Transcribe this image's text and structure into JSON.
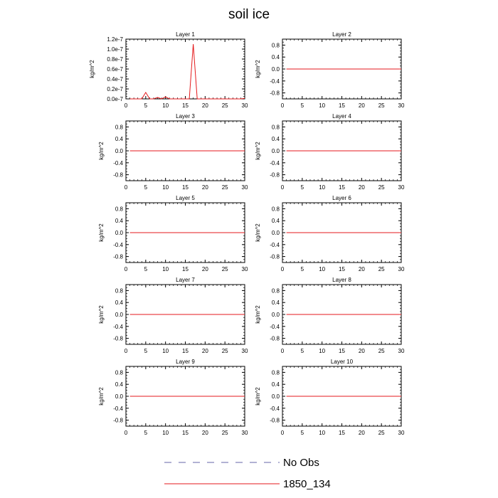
{
  "figure": {
    "title": "soil ice"
  },
  "legend": {
    "items": [
      {
        "label": "No Obs",
        "color": "#6666aa",
        "dashed": true
      },
      {
        "label": "1850_134",
        "color": "#e41a1c",
        "dashed": false
      }
    ]
  },
  "chart_data": [
    {
      "type": "line",
      "title": "Layer 1",
      "xlabel": "",
      "ylabel": "kg/m^2",
      "xlim": [
        0,
        30
      ],
      "ylim": [
        0,
        1.2e-07
      ],
      "xticks": [
        0,
        5,
        10,
        15,
        20,
        25,
        30
      ],
      "xtick_labels": [
        "0",
        "5",
        "10",
        "15",
        "20",
        "25",
        "30"
      ],
      "yticks": [
        0,
        2e-08,
        4e-08,
        6e-08,
        8e-08,
        1e-07,
        1.2e-07
      ],
      "ytick_labels": [
        "0.0e-7",
        "0.2e-7",
        "0.4e-7",
        "0.6e-7",
        "0.8e-7",
        "1.0e-7",
        "1.2e-7"
      ],
      "series": [
        {
          "name": "1850_134",
          "color": "#e41a1c",
          "x": [
            1,
            2,
            3,
            4,
            5,
            6,
            7,
            8,
            9,
            10,
            11,
            12,
            13,
            14,
            15,
            16,
            17,
            18,
            19,
            20,
            21,
            22,
            23,
            24,
            25,
            26,
            27,
            28,
            29,
            30
          ],
          "y": [
            0,
            0,
            0,
            0,
            1.3e-08,
            0,
            0,
            3e-09,
            0,
            4e-09,
            0,
            0,
            0,
            0,
            0,
            0,
            1.1e-07,
            0,
            0,
            0,
            0,
            0,
            0,
            0,
            0,
            0,
            0,
            0,
            0,
            1e-09
          ]
        }
      ]
    },
    {
      "type": "line",
      "title": "Layer 2",
      "xlabel": "",
      "ylabel": "kg/m^2",
      "xlim": [
        0,
        30
      ],
      "ylim": [
        -1,
        1
      ],
      "xticks": [
        0,
        5,
        10,
        15,
        20,
        25,
        30
      ],
      "xtick_labels": [
        "0",
        "5",
        "10",
        "15",
        "20",
        "25",
        "30"
      ],
      "yticks": [
        -0.8,
        -0.4,
        0,
        0.4,
        0.8
      ],
      "ytick_labels": [
        "-0.8",
        "-0.4",
        "0.0",
        "0.4",
        "0.8"
      ],
      "series": [
        {
          "name": "1850_134",
          "color": "#e41a1c",
          "x": [
            1,
            30
          ],
          "y": [
            0,
            0
          ]
        }
      ]
    },
    {
      "type": "line",
      "title": "Layer 3",
      "xlabel": "",
      "ylabel": "kg/m^2",
      "xlim": [
        0,
        30
      ],
      "ylim": [
        -1,
        1
      ],
      "xticks": [
        0,
        5,
        10,
        15,
        20,
        25,
        30
      ],
      "xtick_labels": [
        "0",
        "5",
        "10",
        "15",
        "20",
        "25",
        "30"
      ],
      "yticks": [
        -0.8,
        -0.4,
        0,
        0.4,
        0.8
      ],
      "ytick_labels": [
        "-0.8",
        "-0.4",
        "0.0",
        "0.4",
        "0.8"
      ],
      "series": [
        {
          "name": "1850_134",
          "color": "#e41a1c",
          "x": [
            1,
            30
          ],
          "y": [
            0,
            0
          ]
        }
      ]
    },
    {
      "type": "line",
      "title": "Layer 4",
      "xlabel": "",
      "ylabel": "kg/m^2",
      "xlim": [
        0,
        30
      ],
      "ylim": [
        -1,
        1
      ],
      "xticks": [
        0,
        5,
        10,
        15,
        20,
        25,
        30
      ],
      "xtick_labels": [
        "0",
        "5",
        "10",
        "15",
        "20",
        "25",
        "30"
      ],
      "yticks": [
        -0.8,
        -0.4,
        0,
        0.4,
        0.8
      ],
      "ytick_labels": [
        "-0.8",
        "-0.4",
        "0.0",
        "0.4",
        "0.8"
      ],
      "series": [
        {
          "name": "1850_134",
          "color": "#e41a1c",
          "x": [
            1,
            30
          ],
          "y": [
            0,
            0
          ]
        }
      ]
    },
    {
      "type": "line",
      "title": "Layer 5",
      "xlabel": "",
      "ylabel": "kg/m^2",
      "xlim": [
        0,
        30
      ],
      "ylim": [
        -1,
        1
      ],
      "xticks": [
        0,
        5,
        10,
        15,
        20,
        25,
        30
      ],
      "xtick_labels": [
        "0",
        "5",
        "10",
        "15",
        "20",
        "25",
        "30"
      ],
      "yticks": [
        -0.8,
        -0.4,
        0,
        0.4,
        0.8
      ],
      "ytick_labels": [
        "-0.8",
        "-0.4",
        "0.0",
        "0.4",
        "0.8"
      ],
      "series": [
        {
          "name": "1850_134",
          "color": "#e41a1c",
          "x": [
            1,
            30
          ],
          "y": [
            0,
            0
          ]
        }
      ]
    },
    {
      "type": "line",
      "title": "Layer 6",
      "xlabel": "",
      "ylabel": "kg/m^2",
      "xlim": [
        0,
        30
      ],
      "ylim": [
        -1,
        1
      ],
      "xticks": [
        0,
        5,
        10,
        15,
        20,
        25,
        30
      ],
      "xtick_labels": [
        "0",
        "5",
        "10",
        "15",
        "20",
        "25",
        "30"
      ],
      "yticks": [
        -0.8,
        -0.4,
        0,
        0.4,
        0.8
      ],
      "ytick_labels": [
        "-0.8",
        "-0.4",
        "0.0",
        "0.4",
        "0.8"
      ],
      "series": [
        {
          "name": "1850_134",
          "color": "#e41a1c",
          "x": [
            1,
            30
          ],
          "y": [
            0,
            0
          ]
        }
      ]
    },
    {
      "type": "line",
      "title": "Layer 7",
      "xlabel": "",
      "ylabel": "kg/m^2",
      "xlim": [
        0,
        30
      ],
      "ylim": [
        -1,
        1
      ],
      "xticks": [
        0,
        5,
        10,
        15,
        20,
        25,
        30
      ],
      "xtick_labels": [
        "0",
        "5",
        "10",
        "15",
        "20",
        "25",
        "30"
      ],
      "yticks": [
        -0.8,
        -0.4,
        0,
        0.4,
        0.8
      ],
      "ytick_labels": [
        "-0.8",
        "-0.4",
        "0.0",
        "0.4",
        "0.8"
      ],
      "series": [
        {
          "name": "1850_134",
          "color": "#e41a1c",
          "x": [
            1,
            30
          ],
          "y": [
            0,
            0
          ]
        }
      ]
    },
    {
      "type": "line",
      "title": "Layer 8",
      "xlabel": "",
      "ylabel": "kg/m^2",
      "xlim": [
        0,
        30
      ],
      "ylim": [
        -1,
        1
      ],
      "xticks": [
        0,
        5,
        10,
        15,
        20,
        25,
        30
      ],
      "xtick_labels": [
        "0",
        "5",
        "10",
        "15",
        "20",
        "25",
        "30"
      ],
      "yticks": [
        -0.8,
        -0.4,
        0,
        0.4,
        0.8
      ],
      "ytick_labels": [
        "-0.8",
        "-0.4",
        "0.0",
        "0.4",
        "0.8"
      ],
      "series": [
        {
          "name": "1850_134",
          "color": "#e41a1c",
          "x": [
            1,
            30
          ],
          "y": [
            0,
            0
          ]
        }
      ]
    },
    {
      "type": "line",
      "title": "Layer 9",
      "xlabel": "",
      "ylabel": "kg/m^2",
      "xlim": [
        0,
        30
      ],
      "ylim": [
        -1,
        1
      ],
      "xticks": [
        0,
        5,
        10,
        15,
        20,
        25,
        30
      ],
      "xtick_labels": [
        "0",
        "5",
        "10",
        "15",
        "20",
        "25",
        "30"
      ],
      "yticks": [
        -0.8,
        -0.4,
        0,
        0.4,
        0.8
      ],
      "ytick_labels": [
        "-0.8",
        "-0.4",
        "0.0",
        "0.4",
        "0.8"
      ],
      "series": [
        {
          "name": "1850_134",
          "color": "#e41a1c",
          "x": [
            1,
            30
          ],
          "y": [
            0,
            0
          ]
        }
      ]
    },
    {
      "type": "line",
      "title": "Layer 10",
      "xlabel": "",
      "ylabel": "kg/m^2",
      "xlim": [
        0,
        30
      ],
      "ylim": [
        -1,
        1
      ],
      "xticks": [
        0,
        5,
        10,
        15,
        20,
        25,
        30
      ],
      "xtick_labels": [
        "0",
        "5",
        "10",
        "15",
        "20",
        "25",
        "30"
      ],
      "yticks": [
        -0.8,
        -0.4,
        0,
        0.4,
        0.8
      ],
      "ytick_labels": [
        "-0.8",
        "-0.4",
        "0.0",
        "0.4",
        "0.8"
      ],
      "series": [
        {
          "name": "1850_134",
          "color": "#e41a1c",
          "x": [
            1,
            30
          ],
          "y": [
            0,
            0
          ]
        }
      ]
    }
  ]
}
